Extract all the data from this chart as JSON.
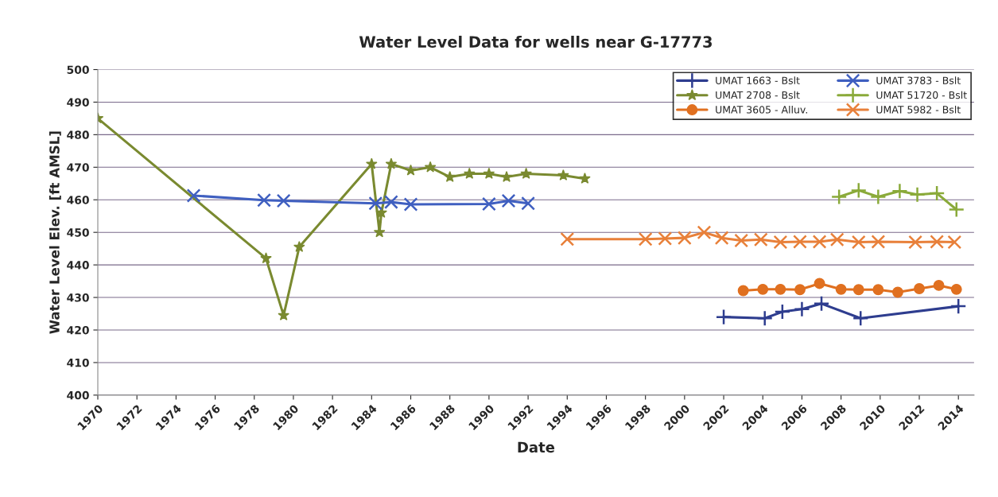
{
  "chart_data": {
    "type": "line",
    "title": "Water Level Data for wells near G-17773",
    "xlabel": "Date",
    "ylabel": "Water Level Elev. [ft AMSL]",
    "xlim": [
      1970,
      2014.8
    ],
    "xticks": [
      1970,
      1972,
      1974,
      1976,
      1978,
      1980,
      1982,
      1984,
      1986,
      1988,
      1990,
      1992,
      1994,
      1996,
      1998,
      2000,
      2002,
      2004,
      2006,
      2008,
      2010,
      2012,
      2014
    ],
    "ylim": [
      400,
      500
    ],
    "yticks": [
      400,
      410,
      420,
      430,
      440,
      450,
      460,
      470,
      480,
      490,
      500
    ],
    "grid": "y",
    "legend": "top right",
    "series": [
      {
        "name": "UMAT 1663 - Bslt",
        "color": "#2e3d8f",
        "marker": "plus",
        "x": [
          2002.0,
          2004.1,
          2005.0,
          2006.0,
          2007.0,
          2009.0,
          2014.0
        ],
        "values": [
          424.0,
          423.6,
          425.6,
          426.4,
          428.1,
          423.6,
          427.3
        ]
      },
      {
        "name": "UMAT 2708 - Bslt",
        "color": "#7a8a30",
        "marker": "star",
        "x": [
          1970.0,
          1978.6,
          1979.5,
          1980.3,
          1984.0,
          1984.4,
          1984.5,
          1985.0,
          1986.0,
          1987.0,
          1988.0,
          1989.0,
          1990.0,
          1990.9,
          1991.9,
          1993.8,
          1994.9
        ],
        "values": [
          485,
          442,
          424.5,
          445.5,
          471,
          450,
          456,
          471,
          469,
          470,
          467,
          468,
          468,
          467,
          468,
          467.5,
          466.5
        ]
      },
      {
        "name": "UMAT 3605 - Alluv.",
        "color": "#e07020",
        "marker": "circle",
        "x": [
          2003.0,
          2004.0,
          2004.9,
          2005.9,
          2006.9,
          2008.0,
          2008.9,
          2009.9,
          2010.9,
          2012.0,
          2013.0,
          2013.9
        ],
        "values": [
          432.1,
          432.5,
          432.5,
          432.4,
          434.3,
          432.5,
          432.4,
          432.4,
          431.6,
          432.7,
          433.7,
          432.5
        ]
      },
      {
        "name": "UMAT 3783 - Bslt",
        "color": "#3f5fc0",
        "marker": "cross",
        "x": [
          1974.9,
          1978.5,
          1979.5,
          1984.2,
          1985.0,
          1986.0,
          1990.0,
          1991.0,
          1992.0
        ],
        "values": [
          461.3,
          459.9,
          459.7,
          458.9,
          459.3,
          458.6,
          458.7,
          459.7,
          458.9
        ]
      },
      {
        "name": "UMAT 51720 - Bslt",
        "color": "#8aaa3a",
        "marker": "plus",
        "x": [
          2007.9,
          2008.9,
          2009.9,
          2011.0,
          2011.9,
          2012.9,
          2013.9
        ],
        "values": [
          460.9,
          462.9,
          460.9,
          462.7,
          461.6,
          462.0,
          457.0
        ]
      },
      {
        "name": "UMAT 5982 - Bslt",
        "color": "#e8803a",
        "marker": "cross",
        "x": [
          1994.0,
          1998.0,
          1999.0,
          2000.0,
          2001.0,
          2001.9,
          2002.9,
          2003.9,
          2004.9,
          2005.9,
          2006.9,
          2007.8,
          2008.9,
          2009.9,
          2011.8,
          2012.9,
          2013.8
        ],
        "values": [
          447.9,
          447.9,
          448.1,
          448.3,
          450.0,
          448.3,
          447.5,
          447.8,
          447.0,
          447.1,
          447.1,
          447.8,
          447.0,
          447.1,
          447.0,
          447.1,
          447.0
        ]
      }
    ]
  }
}
